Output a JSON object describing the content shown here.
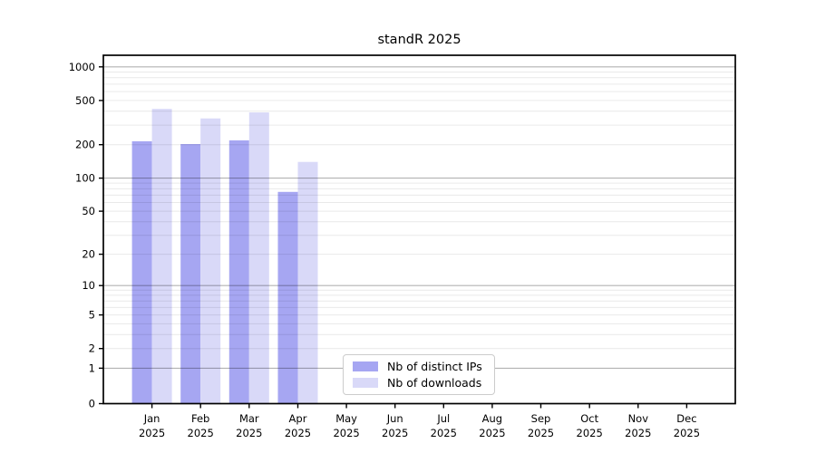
{
  "header": {
    "title": "standR 2025"
  },
  "chart_data": {
    "type": "bar",
    "title": "standR 2025",
    "x_categories": [
      "Jan",
      "Feb",
      "Mar",
      "Apr",
      "May",
      "Jun",
      "Jul",
      "Aug",
      "Sep",
      "Oct",
      "Nov",
      "Dec"
    ],
    "x_year": "2025",
    "series": [
      {
        "name": "Nb of distinct IPs",
        "color": "#a6a6f2",
        "values": [
          215,
          203,
          219,
          75,
          0,
          0,
          0,
          0,
          0,
          0,
          0,
          0
        ]
      },
      {
        "name": "Nb of downloads",
        "color": "#d9d9f8",
        "values": [
          420,
          345,
          390,
          140,
          0,
          0,
          0,
          0,
          0,
          0,
          0,
          0
        ]
      }
    ],
    "y_scale": "log10(1+v)",
    "y_tick_labels": [
      0,
      1,
      2,
      5,
      10,
      20,
      50,
      100,
      200,
      500,
      1000
    ],
    "y_major_gridlines": [
      1,
      10,
      100,
      1000
    ],
    "y_minor_gridline_mantissas": [
      2,
      3,
      4,
      5,
      6,
      7,
      8,
      9
    ],
    "ylim": [
      0,
      1400
    ],
    "xlabel": "",
    "ylabel": "",
    "grid": true,
    "legend": {
      "items": [
        "Nb of distinct IPs",
        "Nb of downloads"
      ],
      "position": "lower-center"
    }
  },
  "colors": {
    "background": "#ffffff",
    "axis": "#000000",
    "grid_major": "rgba(0,0,0,0.30)",
    "grid_minor": "rgba(0,0,0,0.085)",
    "tick_text": "#000000",
    "legend_border": "#cccccc"
  }
}
